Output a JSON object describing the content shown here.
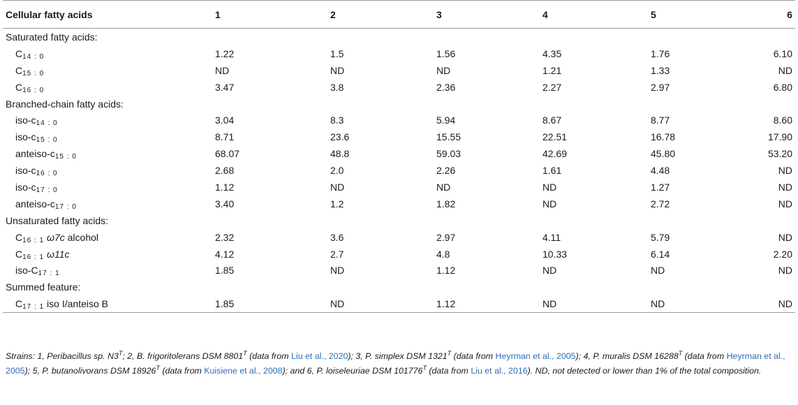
{
  "table": {
    "headers": [
      "Cellular fatty acids",
      "1",
      "2",
      "3",
      "4",
      "5",
      "6"
    ],
    "rows": [
      {
        "type": "section",
        "label": "Saturated fatty acids:"
      },
      {
        "type": "data",
        "prefix": "C",
        "sub": "14 : 0",
        "suffix": "",
        "values": [
          "1.22",
          "1.5",
          "1.56",
          "4.35",
          "1.76",
          "6.10"
        ]
      },
      {
        "type": "data",
        "prefix": "C",
        "sub": "15 : 0",
        "suffix": "",
        "values": [
          "ND",
          "ND",
          "ND",
          "1.21",
          "1.33",
          "ND"
        ]
      },
      {
        "type": "data",
        "prefix": "C",
        "sub": "16 : 0",
        "suffix": "",
        "values": [
          "3.47",
          "3.8",
          "2.36",
          "2.27",
          "2.97",
          "6.80"
        ]
      },
      {
        "type": "section",
        "label": "Branched-chain fatty acids:"
      },
      {
        "type": "data",
        "prefix": "iso-c",
        "sub": "14 : 0",
        "suffix": "",
        "values": [
          "3.04",
          "8.3",
          "5.94",
          "8.67",
          "8.77",
          "8.60"
        ]
      },
      {
        "type": "data",
        "prefix": "iso-c",
        "sub": "15 : 0",
        "suffix": "",
        "values": [
          "8.71",
          "23.6",
          "15.55",
          "22.51",
          "16.78",
          "17.90"
        ]
      },
      {
        "type": "data",
        "prefix": "anteiso-c",
        "sub": "15 : 0",
        "suffix": "",
        "values": [
          "68.07",
          "48.8",
          "59.03",
          "42.69",
          "45.80",
          "53.20"
        ]
      },
      {
        "type": "data",
        "prefix": "iso-c",
        "sub": "16 : 0",
        "suffix": "",
        "values": [
          "2.68",
          "2.0",
          "2.26",
          "1.61",
          "4.48",
          "ND"
        ]
      },
      {
        "type": "data",
        "prefix": "iso-c",
        "sub": "17 : 0",
        "suffix": "",
        "values": [
          "1.12",
          "ND",
          "ND",
          "ND",
          "1.27",
          "ND"
        ]
      },
      {
        "type": "data",
        "prefix": "anteiso-c",
        "sub": "17 : 0",
        "suffix": "",
        "values": [
          "3.40",
          "1.2",
          "1.82",
          "ND",
          "2.72",
          "ND"
        ]
      },
      {
        "type": "section",
        "label": "Unsaturated fatty acids:"
      },
      {
        "type": "data",
        "prefix": "C",
        "sub": "16 : 1",
        "omega": "ω7c",
        "suffix": " alcohol",
        "values": [
          "2.32",
          "3.6",
          "2.97",
          "4.11",
          "5.79",
          "ND"
        ]
      },
      {
        "type": "data",
        "prefix": "C",
        "sub": "16 : 1",
        "omega": "ω11c",
        "suffix": "",
        "values": [
          "4.12",
          "2.7",
          "4.8",
          "10.33",
          "6.14",
          "2.20"
        ]
      },
      {
        "type": "data",
        "prefix": "iso-C",
        "sub": "17 : 1",
        "suffix": "",
        "values": [
          "1.85",
          "ND",
          "1.12",
          "ND",
          "ND",
          "ND"
        ]
      },
      {
        "type": "section",
        "label": "Summed feature:"
      },
      {
        "type": "data",
        "prefix": "C",
        "sub": "17 : 1",
        "suffix": " iso I/anteiso B",
        "values": [
          "1.85",
          "ND",
          "1.12",
          "ND",
          "ND",
          "ND"
        ],
        "last": true
      }
    ]
  },
  "footnote": {
    "parts": [
      {
        "t": "Strains: 1, Peribacillus sp. N3"
      },
      {
        "sup": "T"
      },
      {
        "t": "; 2, B. frigoritolerans DSM 8801"
      },
      {
        "sup": "T"
      },
      {
        "t": " (data from "
      },
      {
        "link": "Liu et al., 2020"
      },
      {
        "t": "); 3, P. simplex DSM 1321"
      },
      {
        "sup": "T"
      },
      {
        "t": " (data from "
      },
      {
        "link": "Heyrman et al., 2005"
      },
      {
        "t": "); 4, P. muralis DSM 16288"
      },
      {
        "sup": "T"
      },
      {
        "t": " (data from "
      },
      {
        "link": "Heyrman et al., 2005"
      },
      {
        "t": "); 5, P. butanolivorans DSM 18926"
      },
      {
        "sup": "T"
      },
      {
        "t": " (data from "
      },
      {
        "link": "Kuisiene et al., 2008"
      },
      {
        "t": "); and 6, P. loiseleuriae DSM 101776"
      },
      {
        "sup": "T"
      },
      {
        "t": " (data from "
      },
      {
        "link": "Liu et al., 2016"
      },
      {
        "t": "). ND, not detected or lower than 1% of the total composition."
      }
    ]
  },
  "colors": {
    "link": "#2f6db5",
    "rule": "#9a9a9a",
    "text": "#1a1a1a"
  }
}
